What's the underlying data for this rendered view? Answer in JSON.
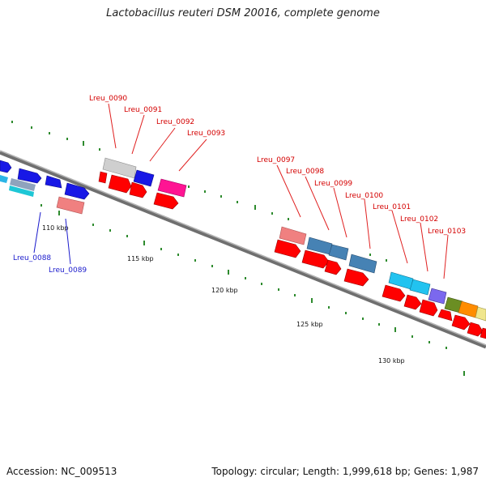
{
  "title": "Lactobacillus reuteri DSM 20016, complete genome",
  "footer": {
    "accession": "Accession: NC_009513",
    "summary": "Topology: circular; Length: 1,999,618 bp; Genes: 1,987"
  },
  "scale": {
    "unit": "kbp",
    "labels": [
      "110 kbp",
      "115 kbp",
      "120 kbp",
      "125 kbp",
      "130 kbp"
    ]
  },
  "colors": {
    "backbone": "#8a8a8a",
    "tick": "#2e8b2e",
    "label_red": "#d40000",
    "label_blue": "#1a1acc"
  },
  "gene_labels_top": [
    "Lreu_0090",
    "Lreu_0091",
    "Lreu_0092",
    "Lreu_0093",
    "Lreu_0097",
    "Lreu_0098",
    "Lreu_0099",
    "Lreu_0100",
    "Lreu_0101",
    "Lreu_0102",
    "Lreu_0103"
  ],
  "gene_labels_bottom": [
    "Lreu_0088",
    "Lreu_0089"
  ]
}
